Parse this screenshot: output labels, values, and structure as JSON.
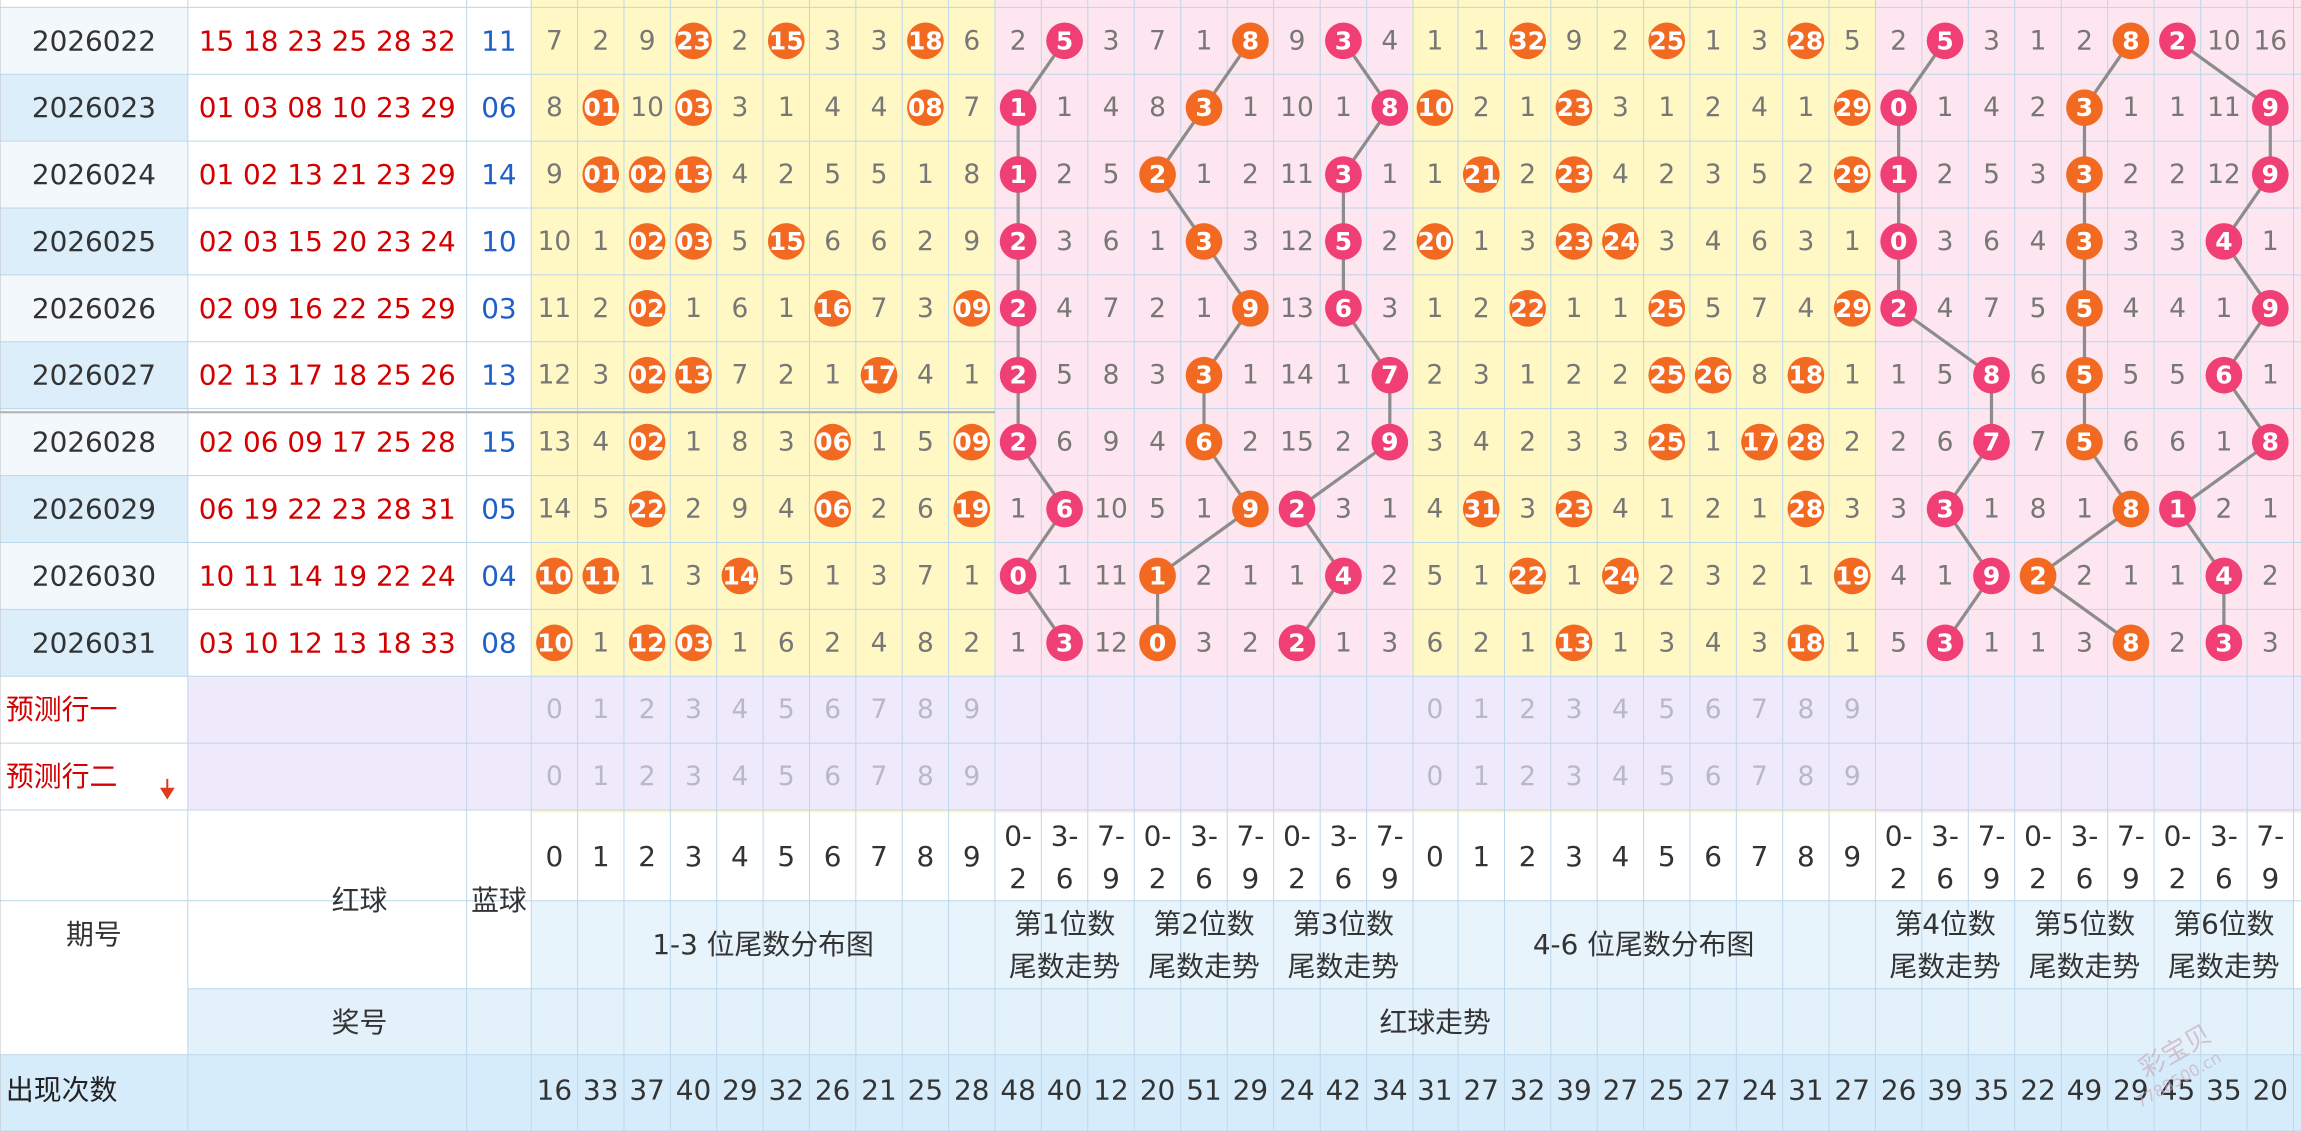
{
  "issues": [
    "2026022",
    "2026023",
    "2026024",
    "2026025",
    "2026026",
    "2026027",
    "2026028",
    "2026029",
    "2026030",
    "2026031"
  ],
  "red_balls": [
    "15 18 23 25 28 32",
    "01 03 08 10 23 29",
    "01 02 13 21 23 29",
    "02 03 15 20 23 24",
    "02 09 16 22 25 29",
    "02 13 17 18 25 26",
    "02 06 09 17 25 28",
    "06 19 22 23 28 31",
    "10 11 14 19 22 24",
    "03 10 12 13 18 33"
  ],
  "blue_balls": [
    "11",
    "06",
    "14",
    "10",
    "03",
    "13",
    "15",
    "05",
    "04",
    "08"
  ],
  "labels": {
    "predict_row_1": "预测行一",
    "predict_row_2": "预测行二",
    "issue": "期号",
    "red_ball": "红球",
    "blue_ball": "蓝球",
    "prize_number": "奖号",
    "red_trend": "红球走势",
    "count": "出现次数",
    "tail_dist_1_3": "1-3 位尾数分布图",
    "tail_dist_4_6": "4-6 位尾数分布图",
    "pos_1": "第1位数",
    "pos_2": "第2位数",
    "pos_3": "第3位数",
    "pos_4": "第4位数",
    "pos_5": "第5位数",
    "pos_6": "第6位数",
    "tail_trend": "尾数走势",
    "digit_headers": [
      "0",
      "1",
      "2",
      "3",
      "4",
      "5",
      "6",
      "7",
      "8",
      "9"
    ],
    "group_headers_top": [
      "0-",
      "3-",
      "7-"
    ],
    "group_headers_bottom": [
      "2",
      "6",
      "9"
    ]
  },
  "watermark": {
    "brand": "彩宝贝",
    "site": "7788500.cn"
  },
  "chart_data": {
    "type": "table",
    "title": "",
    "tail_grid_1_3": {
      "values": [
        [
          "7",
          "2",
          "9",
          "23",
          "2",
          "15",
          "3",
          "3",
          "18",
          "6"
        ],
        [
          "8",
          "01",
          "10",
          "03",
          "3",
          "1",
          "4",
          "4",
          "08",
          "7"
        ],
        [
          "9",
          "01",
          "02",
          "13",
          "4",
          "2",
          "5",
          "5",
          "1",
          "8"
        ],
        [
          "10",
          "1",
          "02",
          "03",
          "5",
          "15",
          "6",
          "6",
          "2",
          "9"
        ],
        [
          "11",
          "2",
          "02",
          "1",
          "6",
          "1",
          "16",
          "7",
          "3",
          "09"
        ],
        [
          "12",
          "3",
          "02",
          "13",
          "7",
          "2",
          "1",
          "17",
          "4",
          "1"
        ],
        [
          "13",
          "4",
          "02",
          "1",
          "8",
          "3",
          "06",
          "1",
          "5",
          "09"
        ],
        [
          "14",
          "5",
          "22",
          "2",
          "9",
          "4",
          "06",
          "2",
          "6",
          "19"
        ],
        [
          "10",
          "11",
          "1",
          "3",
          "14",
          "5",
          "1",
          "3",
          "7",
          "1"
        ],
        [
          "10",
          "1",
          "12",
          "03",
          "1",
          "6",
          "2",
          "4",
          "8",
          "2"
        ]
      ],
      "hits": [
        [
          0,
          0,
          0,
          1,
          0,
          1,
          0,
          0,
          1,
          0
        ],
        [
          0,
          1,
          0,
          1,
          0,
          0,
          0,
          0,
          1,
          0
        ],
        [
          0,
          1,
          1,
          1,
          0,
          0,
          0,
          0,
          0,
          0
        ],
        [
          0,
          0,
          1,
          1,
          0,
          1,
          0,
          0,
          0,
          0
        ],
        [
          0,
          0,
          1,
          0,
          0,
          0,
          1,
          0,
          0,
          1
        ],
        [
          0,
          0,
          1,
          1,
          0,
          0,
          0,
          1,
          0,
          0
        ],
        [
          0,
          0,
          1,
          0,
          0,
          0,
          1,
          0,
          0,
          1
        ],
        [
          0,
          0,
          1,
          0,
          0,
          0,
          1,
          0,
          0,
          1
        ],
        [
          1,
          1,
          0,
          0,
          1,
          0,
          0,
          0,
          0,
          0
        ],
        [
          1,
          0,
          1,
          1,
          0,
          0,
          0,
          0,
          0,
          0
        ]
      ]
    },
    "tail_grid_4_6": {
      "values": [
        [
          "1",
          "1",
          "32",
          "9",
          "2",
          "25",
          "1",
          "3",
          "28",
          "5"
        ],
        [
          "10",
          "2",
          "1",
          "23",
          "3",
          "1",
          "2",
          "4",
          "1",
          "29"
        ],
        [
          "1",
          "21",
          "2",
          "23",
          "4",
          "2",
          "3",
          "5",
          "2",
          "29"
        ],
        [
          "20",
          "1",
          "3",
          "23",
          "24",
          "3",
          "4",
          "6",
          "3",
          "1"
        ],
        [
          "1",
          "2",
          "22",
          "1",
          "1",
          "25",
          "5",
          "7",
          "4",
          "29"
        ],
        [
          "2",
          "3",
          "1",
          "2",
          "2",
          "25",
          "26",
          "8",
          "18",
          "1"
        ],
        [
          "3",
          "4",
          "2",
          "3",
          "3",
          "25",
          "1",
          "17",
          "28",
          "2"
        ],
        [
          "4",
          "31",
          "3",
          "23",
          "4",
          "1",
          "2",
          "1",
          "28",
          "3"
        ],
        [
          "5",
          "1",
          "22",
          "1",
          "24",
          "2",
          "3",
          "2",
          "1",
          "19"
        ],
        [
          "6",
          "2",
          "1",
          "13",
          "1",
          "3",
          "4",
          "3",
          "18",
          "1"
        ]
      ],
      "hits": [
        [
          0,
          0,
          1,
          0,
          0,
          1,
          0,
          0,
          1,
          0
        ],
        [
          1,
          0,
          0,
          1,
          0,
          0,
          0,
          0,
          0,
          1
        ],
        [
          0,
          1,
          0,
          1,
          0,
          0,
          0,
          0,
          0,
          1
        ],
        [
          1,
          0,
          0,
          1,
          1,
          0,
          0,
          0,
          0,
          0
        ],
        [
          0,
          0,
          1,
          0,
          0,
          1,
          0,
          0,
          0,
          1
        ],
        [
          0,
          0,
          0,
          0,
          0,
          1,
          1,
          0,
          1,
          0
        ],
        [
          0,
          0,
          0,
          0,
          0,
          1,
          0,
          1,
          1,
          0
        ],
        [
          0,
          1,
          0,
          1,
          0,
          0,
          0,
          0,
          1,
          0
        ],
        [
          0,
          0,
          1,
          0,
          1,
          0,
          0,
          0,
          0,
          1
        ],
        [
          0,
          0,
          0,
          1,
          0,
          0,
          0,
          0,
          1,
          0
        ]
      ]
    },
    "position_trends": [
      {
        "name": "第1位数",
        "values": [
          [
            "2",
            "5",
            "3"
          ],
          [
            "1",
            "1",
            "4"
          ],
          [
            "1",
            "2",
            "5"
          ],
          [
            "2",
            "3",
            "6"
          ],
          [
            "2",
            "4",
            "7"
          ],
          [
            "2",
            "5",
            "8"
          ],
          [
            "2",
            "6",
            "9"
          ],
          [
            "1",
            "6",
            "10"
          ],
          [
            "0",
            "1",
            "11"
          ],
          [
            "1",
            "3",
            "12"
          ]
        ],
        "hit": [
          1,
          0,
          0,
          0,
          0,
          0,
          0,
          1,
          0,
          1
        ]
      },
      {
        "name": "第2位数",
        "values": [
          [
            "7",
            "1",
            "8"
          ],
          [
            "8",
            "3",
            "1"
          ],
          [
            "2",
            "1",
            "2"
          ],
          [
            "1",
            "3",
            "3"
          ],
          [
            "2",
            "1",
            "9"
          ],
          [
            "3",
            "3",
            "1"
          ],
          [
            "4",
            "6",
            "2"
          ],
          [
            "5",
            "1",
            "9"
          ],
          [
            "1",
            "2",
            "1"
          ],
          [
            "0",
            "3",
            "2"
          ]
        ],
        "hit": [
          2,
          1,
          0,
          1,
          2,
          1,
          1,
          2,
          0,
          0
        ]
      },
      {
        "name": "第3位数",
        "values": [
          [
            "9",
            "3",
            "4"
          ],
          [
            "10",
            "1",
            "8"
          ],
          [
            "11",
            "3",
            "1"
          ],
          [
            "12",
            "5",
            "2"
          ],
          [
            "13",
            "6",
            "3"
          ],
          [
            "14",
            "1",
            "7"
          ],
          [
            "15",
            "2",
            "9"
          ],
          [
            "2",
            "3",
            "1"
          ],
          [
            "1",
            "4",
            "2"
          ],
          [
            "2",
            "1",
            "3"
          ]
        ],
        "hit": [
          1,
          2,
          1,
          1,
          1,
          2,
          2,
          0,
          1,
          0
        ]
      },
      {
        "name": "第4位数",
        "values": [
          [
            "2",
            "5",
            "3"
          ],
          [
            "0",
            "1",
            "4"
          ],
          [
            "1",
            "2",
            "5"
          ],
          [
            "0",
            "3",
            "6"
          ],
          [
            "2",
            "4",
            "7"
          ],
          [
            "1",
            "5",
            "8"
          ],
          [
            "2",
            "6",
            "7"
          ],
          [
            "3",
            "3",
            "1"
          ],
          [
            "4",
            "1",
            "9"
          ],
          [
            "5",
            "3",
            "1"
          ]
        ],
        "hit": [
          1,
          0,
          0,
          0,
          0,
          2,
          2,
          1,
          2,
          1
        ]
      },
      {
        "name": "第5位数",
        "values": [
          [
            "1",
            "2",
            "8"
          ],
          [
            "2",
            "3",
            "1"
          ],
          [
            "3",
            "3",
            "2"
          ],
          [
            "4",
            "3",
            "3"
          ],
          [
            "5",
            "5",
            "4"
          ],
          [
            "6",
            "5",
            "5"
          ],
          [
            "7",
            "5",
            "6"
          ],
          [
            "8",
            "1",
            "8"
          ],
          [
            "2",
            "2",
            "1"
          ],
          [
            "1",
            "3",
            "8"
          ]
        ],
        "hit": [
          2,
          1,
          1,
          1,
          1,
          1,
          1,
          2,
          0,
          2
        ]
      },
      {
        "name": "第6位数",
        "values": [
          [
            "2",
            "10",
            "16"
          ],
          [
            "1",
            "11",
            "9"
          ],
          [
            "2",
            "12",
            "9"
          ],
          [
            "3",
            "4",
            "1"
          ],
          [
            "4",
            "1",
            "9"
          ],
          [
            "5",
            "6",
            "1"
          ],
          [
            "6",
            "1",
            "8"
          ],
          [
            "1",
            "2",
            "1"
          ],
          [
            "1",
            "4",
            "2"
          ],
          [
            "2",
            "3",
            "3"
          ]
        ],
        "hit": [
          0,
          2,
          2,
          1,
          2,
          1,
          2,
          0,
          1,
          1
        ]
      }
    ],
    "predict_digits": [
      "0",
      "1",
      "2",
      "3",
      "4",
      "5",
      "6",
      "7",
      "8",
      "9"
    ],
    "occurrence_counts": [
      "16",
      "33",
      "37",
      "40",
      "29",
      "32",
      "26",
      "21",
      "25",
      "28",
      "48",
      "40",
      "12",
      "20",
      "51",
      "29",
      "24",
      "42",
      "34",
      "31",
      "27",
      "32",
      "39",
      "27",
      "25",
      "27",
      "24",
      "31",
      "27",
      "26",
      "39",
      "35",
      "22",
      "49",
      "29",
      "45",
      "35",
      "20"
    ],
    "colors": {
      "hit_orange": "#f26a21",
      "hit_pink": "#ef3f74",
      "red_text": "#d40000",
      "blue_text": "#1f5fc8",
      "zone_yellow": "#fff8c5",
      "zone_pink": "#fde6ef",
      "zone_lavender": "#eeeafb",
      "header_blue": "#d6ecfb",
      "line_gray": "#8c8c8c"
    }
  }
}
